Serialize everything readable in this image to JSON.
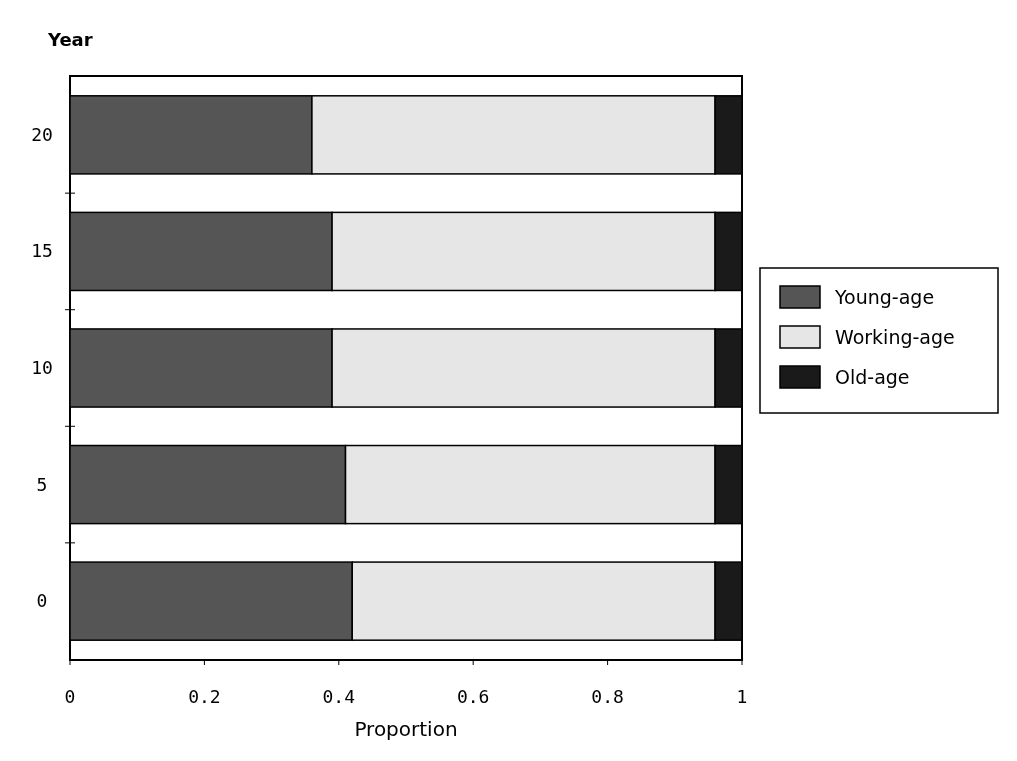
{
  "chart_data": {
    "type": "bar",
    "orientation": "horizontal",
    "stacked": true,
    "ylabel": "Year",
    "xlabel": "Proportion",
    "categories": [
      "20",
      "15",
      "10",
      "5",
      "0"
    ],
    "series": [
      {
        "name": "Young-age",
        "color": "#555555",
        "values": [
          0.36,
          0.39,
          0.39,
          0.41,
          0.42
        ]
      },
      {
        "name": "Working-age",
        "color": "#e6e6e6",
        "values": [
          0.6,
          0.57,
          0.57,
          0.55,
          0.54
        ]
      },
      {
        "name": "Old-age",
        "color": "#1a1a1a",
        "values": [
          0.04,
          0.04,
          0.04,
          0.04,
          0.04
        ]
      }
    ],
    "xlim": [
      0,
      1
    ],
    "xticks": [
      0,
      0.2,
      0.4,
      0.6,
      0.8,
      1
    ],
    "legend": "right"
  }
}
